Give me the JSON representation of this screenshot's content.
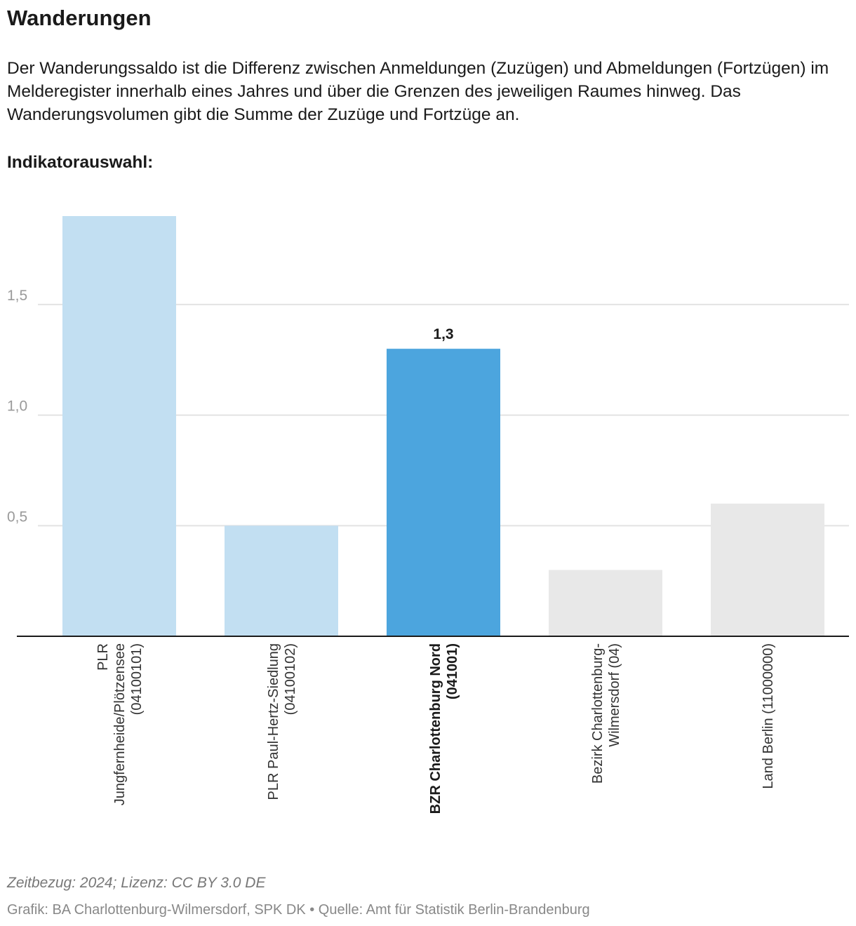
{
  "header": {
    "title": "Wanderungen",
    "description": "Der Wanderungssaldo ist die Differenz zwischen Anmeldungen (Zuzügen) und Abmeldungen (Fortzügen) im Melderegister innerhalb eines Jahres und über die Grenzen des jeweiligen Raumes hinweg. Das Wanderungsvolumen gibt die Summe der Zuzüge und Fortzüge an.",
    "indicator_label": "Indikatorauswahl:"
  },
  "chart_data": {
    "type": "bar",
    "categories": [
      "PLR Jungfernheide/Plötzensee (04100101)",
      "PLR Paul-Hertz-Siedlung (04100102)",
      "BZR Charlottenburg Nord (041001)",
      "Bezirk Charlottenburg-Wilmersdorf (04)",
      "Land Berlin (11000000)"
    ],
    "category_lines": [
      [
        "PLR",
        "Jungfernheide/Plötzensee",
        "(04100101)"
      ],
      [
        "PLR Paul-Hertz-Siedlung",
        "(04100102)"
      ],
      [
        "BZR Charlottenburg Nord",
        "(041001)"
      ],
      [
        "Bezirk Charlottenburg-",
        "Wilmersdorf (04)"
      ],
      [
        "Land Berlin (11000000)"
      ]
    ],
    "values": [
      1.9,
      0.5,
      1.3,
      0.3,
      0.6
    ],
    "colors": [
      "#c2dff2",
      "#c2dff2",
      "#4ca5de",
      "#e8e8e8",
      "#e8e8e8"
    ],
    "highlight_index": 2,
    "value_labels": [
      "",
      "",
      "1,3",
      "",
      ""
    ],
    "yticks": [
      0.5,
      1.0,
      1.5
    ],
    "ytick_labels": [
      "0,5",
      "1,0",
      "1,5"
    ],
    "ylim": [
      0,
      1.9
    ],
    "grid": true,
    "title": "",
    "xlabel": "",
    "ylabel": ""
  },
  "footer": {
    "time_license": "Zeitbezug: 2024; Lizenz: CC BY 3.0 DE",
    "source": "Grafik: BA Charlottenburg-Wilmersdorf, SPK DK • Quelle: Amt für Statistik Berlin-Brandenburg"
  }
}
